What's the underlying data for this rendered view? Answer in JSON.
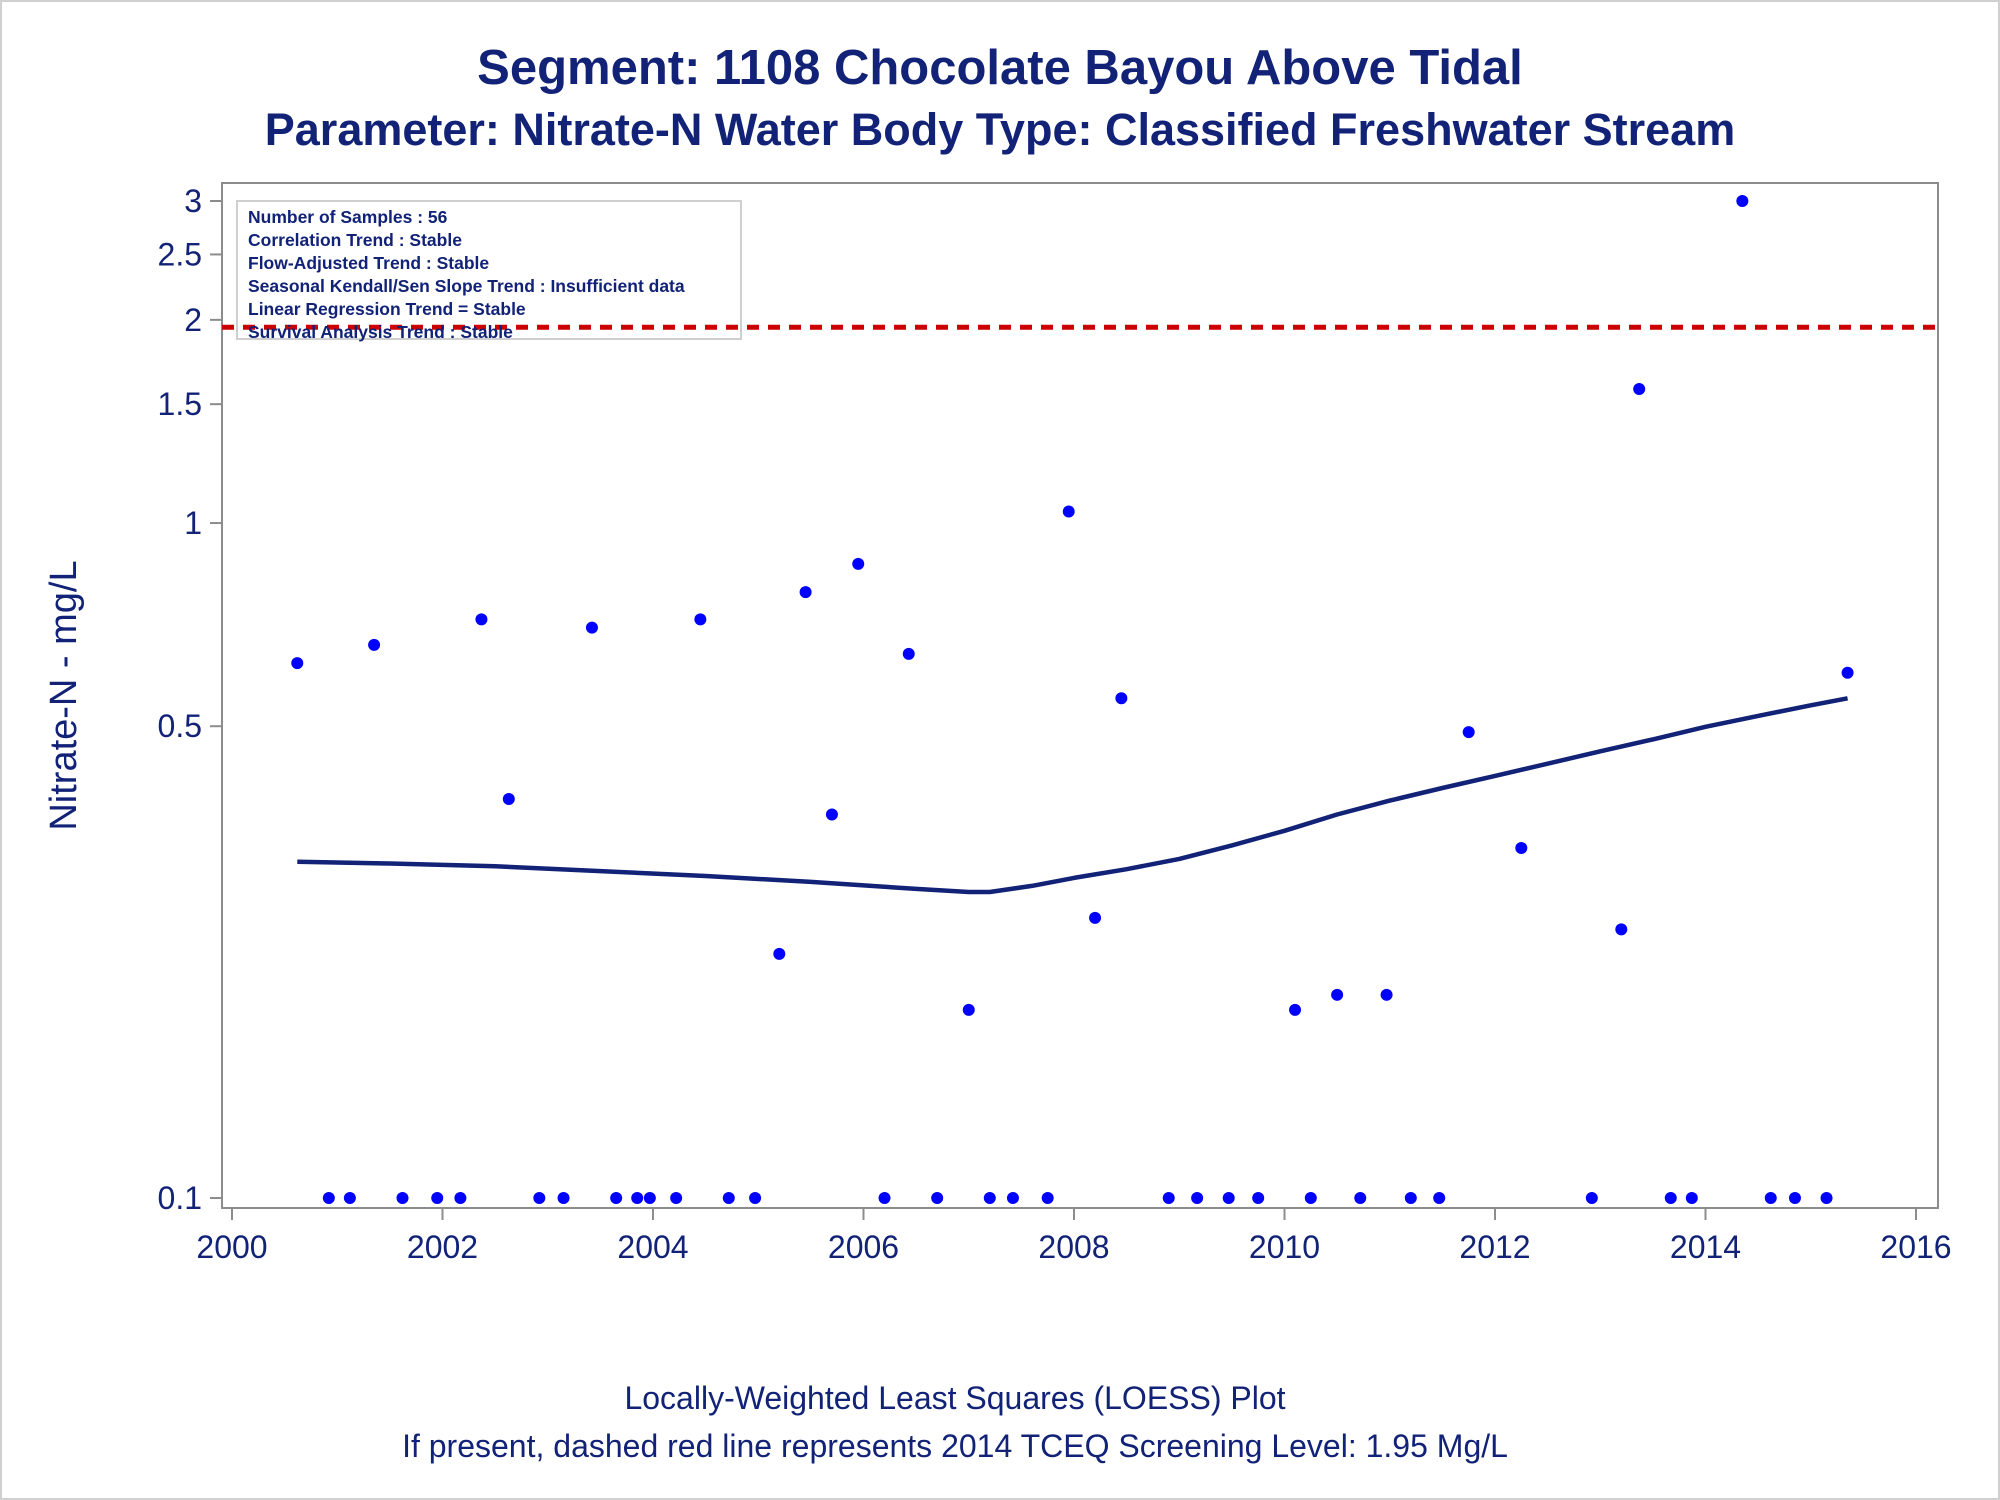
{
  "chart_data": {
    "type": "scatter",
    "title": "Segment: 1108  Chocolate Bayou Above Tidal",
    "subtitle": "Parameter: Nitrate-N   Water Body Type: Classified Freshwater Stream",
    "xlabel": "",
    "ylabel": "Nitrate-N - mg/L",
    "xlim": [
      2000,
      2016
    ],
    "ylim": [
      0.1,
      3
    ],
    "yscale": "log",
    "x_ticks": [
      "2000",
      "2002",
      "2004",
      "2006",
      "2008",
      "2010",
      "2012",
      "2014",
      "2016"
    ],
    "y_ticks": [
      "0.1",
      "0.5",
      "1",
      "1.5",
      "2",
      "2.5",
      "3"
    ],
    "grid": false,
    "legend_lines": [
      "Number of Samples : 56",
      "Correlation Trend : Stable",
      "Flow-Adjusted Trend : Stable",
      "Seasonal Kendall/Sen Slope Trend : Insufficient data",
      "Linear Regression Trend = Stable",
      "Survival Analysis Trend : Stable"
    ],
    "legend_placement": "top-left",
    "screening_level": {
      "value": 1.95,
      "style": "dashed",
      "color": "#cc0000"
    },
    "series": [
      {
        "type": "scatter",
        "color": "#0000ff",
        "x": [
          2000.62,
          2001.35,
          2002.37,
          2002.63,
          2003.42,
          2004.45,
          2005.45,
          2005.95,
          2006.43,
          2007.95,
          2008.45,
          2011.75,
          2013.37,
          2014.35,
          2015.35,
          2005.7,
          2012.25,
          2008.2,
          2013.2,
          2005.2,
          2007.0,
          2010.1,
          2010.5,
          2010.97,
          2000.92,
          2001.12,
          2001.62,
          2001.95,
          2002.17,
          2002.92,
          2003.15,
          2003.65,
          2003.85,
          2003.97,
          2004.22,
          2004.72,
          2004.97,
          2006.2,
          2006.7,
          2007.2,
          2007.42,
          2007.75,
          2008.9,
          2009.17,
          2009.47,
          2009.75,
          2010.25,
          2010.72,
          2011.2,
          2011.47,
          2012.92,
          2013.67,
          2013.87,
          2014.62,
          2014.85,
          2015.15
        ],
        "y": [
          0.62,
          0.66,
          0.72,
          0.39,
          0.7,
          0.72,
          0.79,
          0.87,
          0.64,
          1.04,
          0.55,
          0.49,
          1.58,
          3.0,
          0.6,
          0.37,
          0.33,
          0.26,
          0.25,
          0.23,
          0.19,
          0.19,
          0.2,
          0.2,
          0.1,
          0.1,
          0.1,
          0.1,
          0.1,
          0.1,
          0.1,
          0.1,
          0.1,
          0.1,
          0.1,
          0.1,
          0.1,
          0.1,
          0.1,
          0.1,
          0.1,
          0.1,
          0.1,
          0.1,
          0.1,
          0.1,
          0.1,
          0.1,
          0.1,
          0.1,
          0.1,
          0.1,
          0.1,
          0.1,
          0.1,
          0.1
        ]
      },
      {
        "type": "line",
        "color": "#112277",
        "x": [
          2000.62,
          2001.5,
          2002.5,
          2003.5,
          2004.5,
          2005.5,
          2006.5,
          2007.0,
          2007.2,
          2007.6,
          2008.0,
          2008.5,
          2009.0,
          2009.5,
          2010.0,
          2010.5,
          2011.0,
          2011.5,
          2012.0,
          2012.5,
          2013.0,
          2013.5,
          2014.0,
          2014.5,
          2015.0,
          2015.35
        ],
        "y": [
          0.315,
          0.313,
          0.31,
          0.305,
          0.3,
          0.294,
          0.287,
          0.284,
          0.284,
          0.29,
          0.298,
          0.307,
          0.318,
          0.333,
          0.35,
          0.37,
          0.388,
          0.405,
          0.422,
          0.44,
          0.459,
          0.478,
          0.499,
          0.518,
          0.537,
          0.55
        ]
      }
    ]
  },
  "footnote": {
    "line1": "Locally-Weighted Least Squares (LOESS) Plot",
    "line2": "If present, dashed red line represents 2014 TCEQ Screening Level: 1.95 Mg/L"
  }
}
